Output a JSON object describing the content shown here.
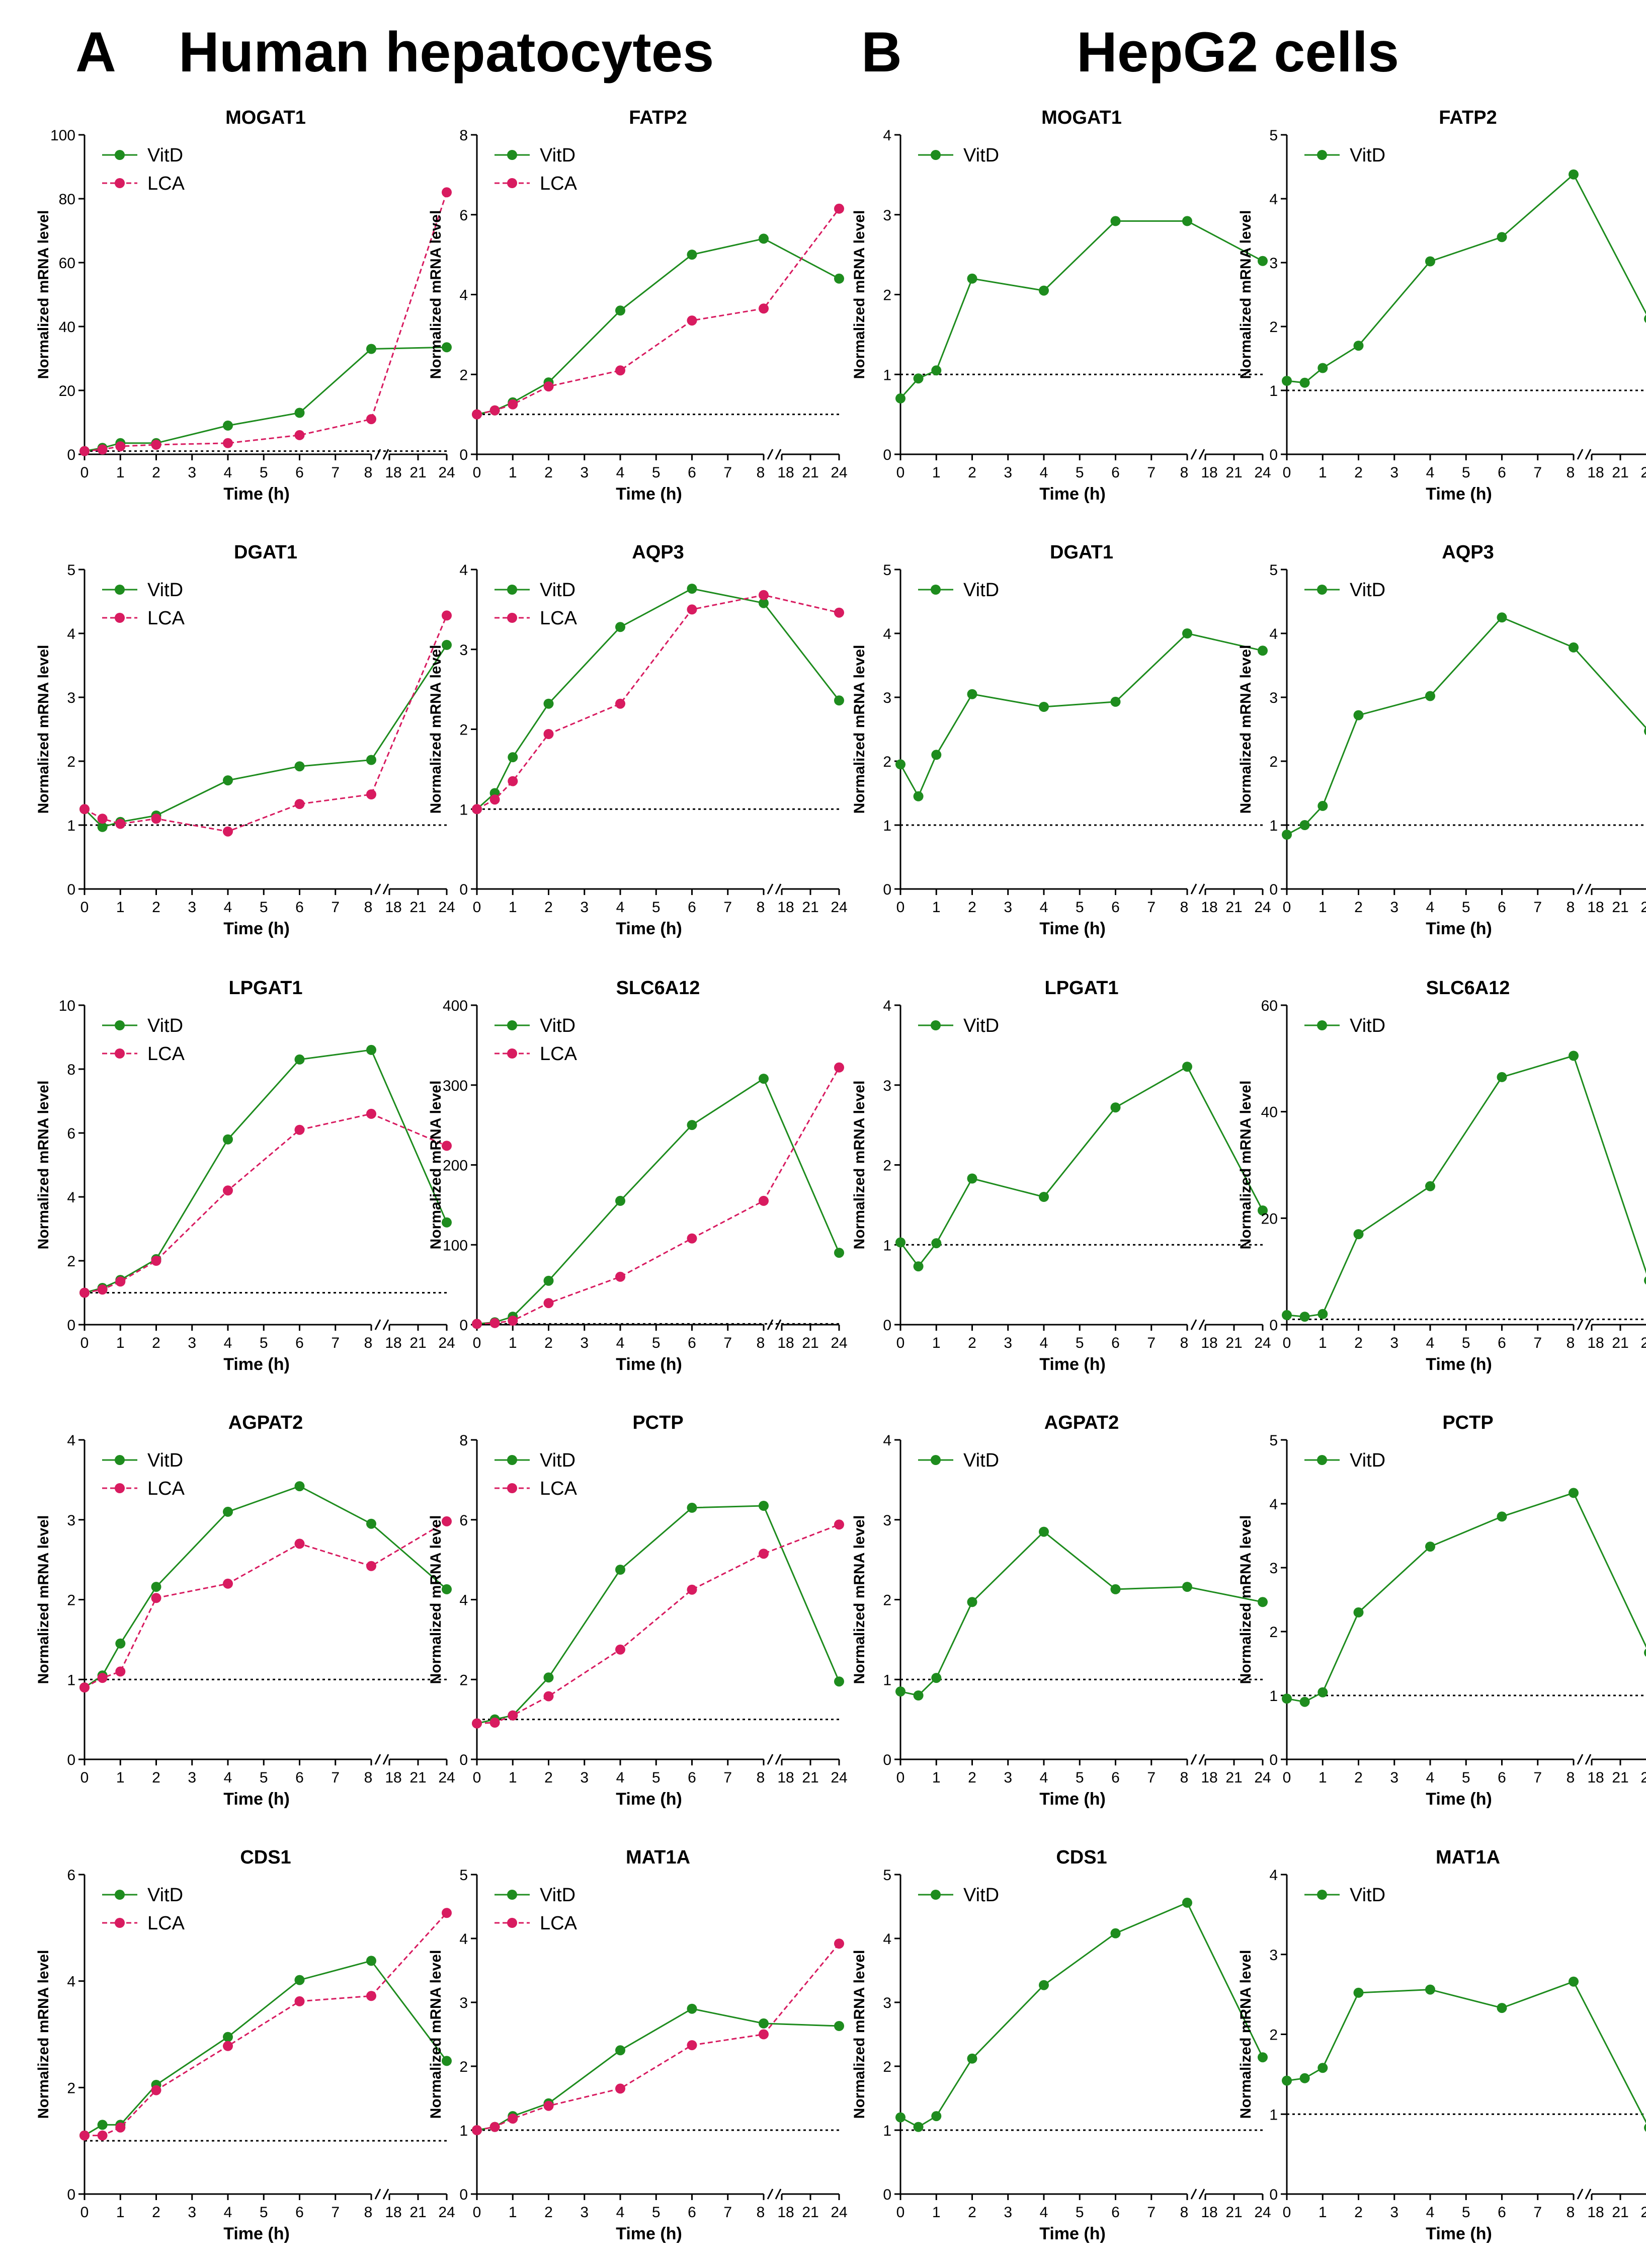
{
  "figure": {
    "section_a": {
      "letter": "A",
      "title": "Human hepatocytes"
    },
    "section_b": {
      "letter": "B",
      "title": "HepG2 cells"
    },
    "colors": {
      "vitd": "#1e8c1e",
      "lca": "#d81b60",
      "axis": "#000000"
    }
  },
  "axis": {
    "x_label": "Time (h)",
    "y_label": "Normalized mRNA level",
    "x_ticks": [
      "0",
      "1",
      "2",
      "3",
      "4",
      "5",
      "6",
      "7",
      "8",
      "18",
      "21",
      "24"
    ]
  },
  "legend": {
    "vitd": "VitD",
    "lca": "LCA"
  },
  "chart_data": [
    {
      "type": "line",
      "section": "A",
      "title": "MOGAT1",
      "ylim": [
        0,
        100
      ],
      "yticks": [
        0,
        20,
        40,
        60,
        80,
        100
      ],
      "x": [
        0,
        0.5,
        1,
        2,
        4,
        6,
        8,
        24
      ],
      "series": [
        {
          "name": "VitD",
          "values": [
            1,
            2,
            3.5,
            3.5,
            9,
            13,
            33,
            33.5
          ]
        },
        {
          "name": "LCA",
          "values": [
            1,
            1.5,
            2.5,
            3,
            3.5,
            6,
            11,
            82
          ]
        }
      ]
    },
    {
      "type": "line",
      "section": "A",
      "title": "FATP2",
      "ylim": [
        0,
        8
      ],
      "yticks": [
        0,
        2,
        4,
        6,
        8
      ],
      "x": [
        0,
        0.5,
        1,
        2,
        4,
        6,
        8,
        24
      ],
      "series": [
        {
          "name": "VitD",
          "values": [
            1,
            1.1,
            1.3,
            1.8,
            3.6,
            5,
            5.4,
            4.4
          ]
        },
        {
          "name": "LCA",
          "values": [
            1,
            1.1,
            1.25,
            1.7,
            2.1,
            3.35,
            3.65,
            6.15
          ]
        }
      ]
    },
    {
      "type": "line",
      "section": "B",
      "title": "MOGAT1",
      "ylim": [
        0,
        4
      ],
      "yticks": [
        0,
        1,
        2,
        3,
        4
      ],
      "x": [
        0,
        0.5,
        1,
        2,
        4,
        6,
        8,
        24
      ],
      "series": [
        {
          "name": "VitD",
          "values": [
            0.7,
            0.95,
            1.05,
            2.2,
            2.05,
            2.92,
            2.92,
            2.42
          ]
        }
      ]
    },
    {
      "type": "line",
      "section": "B",
      "title": "FATP2",
      "ylim": [
        0,
        5
      ],
      "yticks": [
        0,
        1,
        2,
        3,
        4,
        5
      ],
      "x": [
        0,
        0.5,
        1,
        2,
        4,
        6,
        8,
        24
      ],
      "series": [
        {
          "name": "VitD",
          "values": [
            1.15,
            1.12,
            1.35,
            1.7,
            3.02,
            3.4,
            4.38,
            2.12
          ]
        }
      ]
    },
    {
      "type": "line",
      "section": "A",
      "title": "DGAT1",
      "ylim": [
        0,
        5
      ],
      "yticks": [
        0,
        1,
        2,
        3,
        4,
        5
      ],
      "x": [
        0,
        0.5,
        1,
        2,
        4,
        6,
        8,
        24
      ],
      "series": [
        {
          "name": "VitD",
          "values": [
            1.25,
            0.97,
            1.05,
            1.15,
            1.7,
            1.92,
            2.02,
            3.82
          ]
        },
        {
          "name": "LCA",
          "values": [
            1.25,
            1.1,
            1.02,
            1.1,
            0.9,
            1.33,
            1.48,
            4.28
          ]
        }
      ]
    },
    {
      "type": "line",
      "section": "A",
      "title": "AQP3",
      "ylim": [
        0,
        4
      ],
      "yticks": [
        0,
        1,
        2,
        3,
        4
      ],
      "x": [
        0,
        0.5,
        1,
        2,
        4,
        6,
        8,
        24
      ],
      "series": [
        {
          "name": "VitD",
          "values": [
            1,
            1.2,
            1.65,
            2.32,
            3.28,
            3.76,
            3.58,
            2.36
          ]
        },
        {
          "name": "LCA",
          "values": [
            1,
            1.12,
            1.35,
            1.94,
            2.32,
            3.5,
            3.68,
            3.46
          ]
        }
      ]
    },
    {
      "type": "line",
      "section": "B",
      "title": "DGAT1",
      "ylim": [
        0,
        5
      ],
      "yticks": [
        0,
        1,
        2,
        3,
        4,
        5
      ],
      "x": [
        0,
        0.5,
        1,
        2,
        4,
        6,
        8,
        24
      ],
      "series": [
        {
          "name": "VitD",
          "values": [
            1.95,
            1.45,
            2.1,
            3.05,
            2.85,
            2.93,
            4,
            3.73
          ]
        }
      ]
    },
    {
      "type": "line",
      "section": "B",
      "title": "AQP3",
      "ylim": [
        0,
        5
      ],
      "yticks": [
        0,
        1,
        2,
        3,
        4,
        5
      ],
      "x": [
        0,
        0.5,
        1,
        2,
        4,
        6,
        8,
        24
      ],
      "series": [
        {
          "name": "VitD",
          "values": [
            0.85,
            1,
            1.3,
            2.72,
            3.02,
            4.25,
            3.78,
            2.47
          ]
        }
      ]
    },
    {
      "type": "line",
      "section": "A",
      "title": "LPGAT1",
      "ylim": [
        0,
        10
      ],
      "yticks": [
        0,
        2,
        4,
        6,
        8,
        10
      ],
      "x": [
        0,
        0.5,
        1,
        2,
        4,
        6,
        8,
        24
      ],
      "series": [
        {
          "name": "VitD",
          "values": [
            1,
            1.15,
            1.4,
            2.05,
            5.8,
            8.3,
            8.6,
            3.2
          ]
        },
        {
          "name": "LCA",
          "values": [
            1,
            1.1,
            1.35,
            2,
            4.2,
            6.1,
            6.6,
            5.6
          ]
        }
      ]
    },
    {
      "type": "line",
      "section": "A",
      "title": "SLC6A12",
      "ylim": [
        0,
        400
      ],
      "yticks": [
        0,
        100,
        200,
        300,
        400
      ],
      "x": [
        0,
        0.5,
        1,
        2,
        4,
        6,
        8,
        24
      ],
      "series": [
        {
          "name": "VitD",
          "values": [
            1,
            3,
            10,
            55,
            155,
            250,
            308,
            90
          ]
        },
        {
          "name": "LCA",
          "values": [
            1,
            2,
            5,
            27,
            60,
            108,
            155,
            322
          ]
        }
      ]
    },
    {
      "type": "line",
      "section": "B",
      "title": "LPGAT1",
      "ylim": [
        0,
        4
      ],
      "yticks": [
        0,
        1,
        2,
        3,
        4
      ],
      "x": [
        0,
        0.5,
        1,
        2,
        4,
        6,
        8,
        24
      ],
      "series": [
        {
          "name": "VitD",
          "values": [
            1.03,
            0.73,
            1.02,
            1.83,
            1.6,
            2.72,
            3.23,
            1.43
          ]
        }
      ]
    },
    {
      "type": "line",
      "section": "B",
      "title": "SLC6A12",
      "ylim": [
        0,
        60
      ],
      "yticks": [
        0,
        20,
        40,
        60
      ],
      "x": [
        0,
        0.5,
        1,
        2,
        4,
        6,
        8,
        24
      ],
      "series": [
        {
          "name": "VitD",
          "values": [
            1.8,
            1.5,
            2,
            17,
            26,
            46.5,
            50.5,
            8.3
          ]
        }
      ]
    },
    {
      "type": "line",
      "section": "A",
      "title": "AGPAT2",
      "ylim": [
        0,
        4
      ],
      "yticks": [
        0,
        1,
        2,
        3,
        4
      ],
      "x": [
        0,
        0.5,
        1,
        2,
        4,
        6,
        8,
        24
      ],
      "series": [
        {
          "name": "VitD",
          "values": [
            0.9,
            1.05,
            1.45,
            2.16,
            3.1,
            3.42,
            2.95,
            2.13
          ]
        },
        {
          "name": "LCA",
          "values": [
            0.9,
            1.02,
            1.1,
            2.02,
            2.2,
            2.7,
            2.42,
            2.98
          ]
        }
      ]
    },
    {
      "type": "line",
      "section": "A",
      "title": "PCTP",
      "ylim": [
        0,
        8
      ],
      "yticks": [
        0,
        2,
        4,
        6,
        8
      ],
      "x": [
        0,
        0.5,
        1,
        2,
        4,
        6,
        8,
        24
      ],
      "series": [
        {
          "name": "VitD",
          "values": [
            0.9,
            1,
            1.1,
            2.05,
            4.75,
            6.3,
            6.35,
            1.95
          ]
        },
        {
          "name": "LCA",
          "values": [
            0.9,
            0.92,
            1.1,
            1.58,
            2.75,
            4.25,
            5.15,
            5.88
          ]
        }
      ]
    },
    {
      "type": "line",
      "section": "B",
      "title": "AGPAT2",
      "ylim": [
        0,
        4
      ],
      "yticks": [
        0,
        1,
        2,
        3,
        4
      ],
      "x": [
        0,
        0.5,
        1,
        2,
        4,
        6,
        8,
        24
      ],
      "series": [
        {
          "name": "VitD",
          "values": [
            0.85,
            0.8,
            1.02,
            1.97,
            2.85,
            2.13,
            2.16,
            1.97
          ]
        }
      ]
    },
    {
      "type": "line",
      "section": "B",
      "title": "PCTP",
      "ylim": [
        0,
        5
      ],
      "yticks": [
        0,
        1,
        2,
        3,
        4,
        5
      ],
      "x": [
        0,
        0.5,
        1,
        2,
        4,
        6,
        8,
        24
      ],
      "series": [
        {
          "name": "VitD",
          "values": [
            0.95,
            0.9,
            1.05,
            2.3,
            3.33,
            3.8,
            4.17,
            1.67
          ]
        }
      ]
    },
    {
      "type": "line",
      "section": "A",
      "title": "CDS1",
      "ylim": [
        0,
        6
      ],
      "yticks": [
        0,
        2,
        4,
        6
      ],
      "x": [
        0,
        0.5,
        1,
        2,
        4,
        6,
        8,
        24
      ],
      "series": [
        {
          "name": "VitD",
          "values": [
            1.1,
            1.3,
            1.3,
            2.05,
            2.95,
            4.02,
            4.38,
            2.5
          ]
        },
        {
          "name": "LCA",
          "values": [
            1.1,
            1.1,
            1.25,
            1.95,
            2.78,
            3.62,
            3.72,
            5.28
          ]
        }
      ]
    },
    {
      "type": "line",
      "section": "A",
      "title": "MAT1A",
      "ylim": [
        0,
        5
      ],
      "yticks": [
        0,
        1,
        2,
        3,
        4,
        5
      ],
      "x": [
        0,
        0.5,
        1,
        2,
        4,
        6,
        8,
        24
      ],
      "series": [
        {
          "name": "VitD",
          "values": [
            1,
            1.05,
            1.22,
            1.42,
            2.25,
            2.9,
            2.67,
            2.63
          ]
        },
        {
          "name": "LCA",
          "values": [
            1,
            1.05,
            1.18,
            1.38,
            1.65,
            2.33,
            2.5,
            3.92
          ]
        }
      ]
    },
    {
      "type": "line",
      "section": "B",
      "title": "CDS1",
      "ylim": [
        0,
        5
      ],
      "yticks": [
        0,
        1,
        2,
        3,
        4,
        5
      ],
      "x": [
        0,
        0.5,
        1,
        2,
        4,
        6,
        8,
        24
      ],
      "series": [
        {
          "name": "VitD",
          "values": [
            1.2,
            1.05,
            1.22,
            2.12,
            3.27,
            4.08,
            4.56,
            2.14
          ]
        }
      ]
    },
    {
      "type": "line",
      "section": "B",
      "title": "MAT1A",
      "ylim": [
        0,
        4
      ],
      "yticks": [
        0,
        1,
        2,
        3,
        4
      ],
      "x": [
        0,
        0.5,
        1,
        2,
        4,
        6,
        8,
        24
      ],
      "series": [
        {
          "name": "VitD",
          "values": [
            1.42,
            1.45,
            1.58,
            2.52,
            2.56,
            2.33,
            2.66,
            0.83
          ]
        }
      ]
    }
  ]
}
